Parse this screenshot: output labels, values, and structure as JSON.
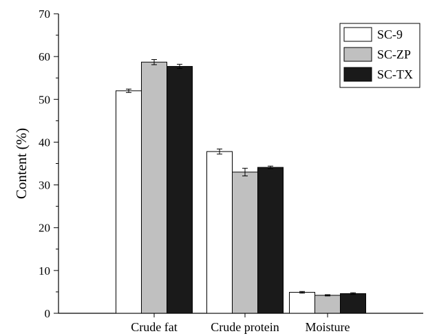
{
  "chart_data": {
    "type": "bar",
    "categories": [
      "Crude fat",
      "Crude protein",
      "Moisture"
    ],
    "series": [
      {
        "name": "SC-9",
        "color": "#ffffff",
        "values": [
          52.0,
          37.8,
          4.9
        ],
        "errors": [
          0.4,
          0.6,
          0.2
        ]
      },
      {
        "name": "SC-ZP",
        "color": "#c0c0c0",
        "values": [
          58.7,
          33.0,
          4.2
        ],
        "errors": [
          0.6,
          0.9,
          0.15
        ]
      },
      {
        "name": "SC-TX",
        "color": "#1a1a1a",
        "values": [
          57.7,
          34.1,
          4.6
        ],
        "errors": [
          0.5,
          0.3,
          0.2
        ]
      }
    ],
    "ylabel": "Content (%)",
    "xlabel": "",
    "title": "",
    "ylim": [
      0,
      70
    ],
    "yticks": [
      0,
      10,
      20,
      30,
      40,
      50,
      60,
      70
    ],
    "legend_position": "top-right",
    "grid": false
  }
}
